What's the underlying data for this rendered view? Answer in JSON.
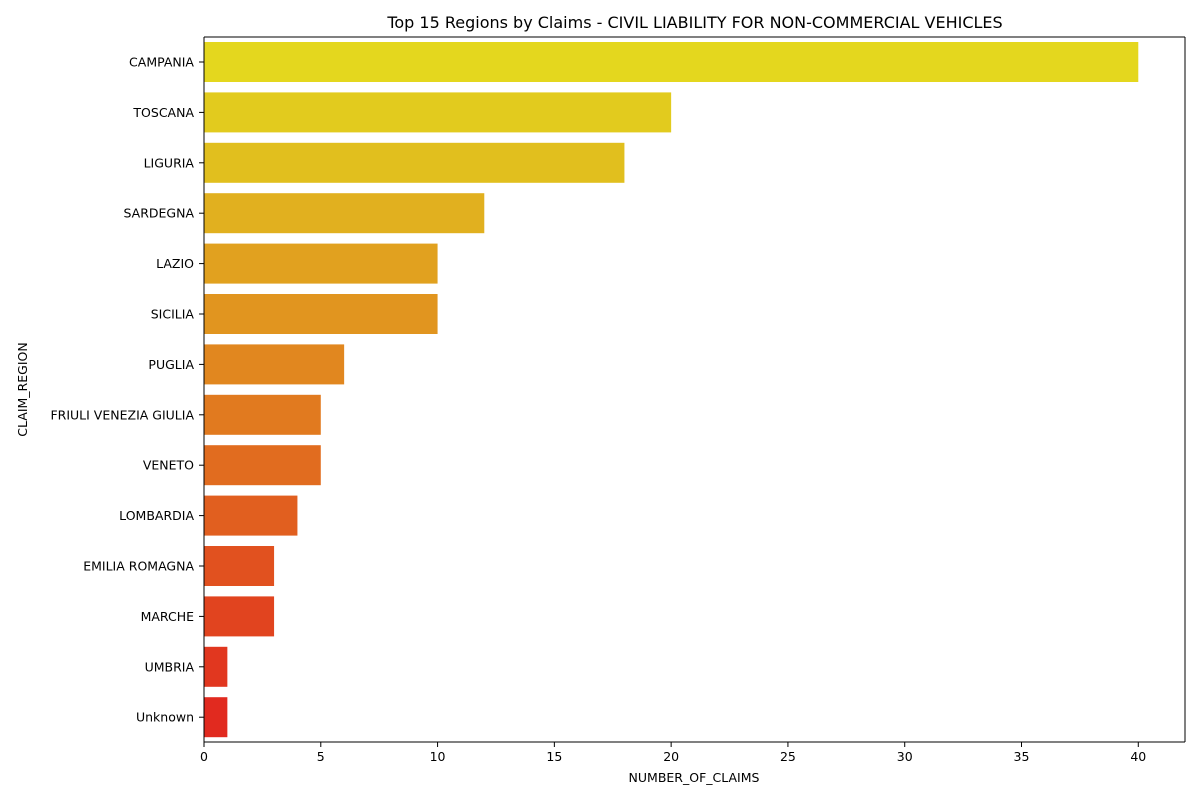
{
  "chart_data": {
    "type": "bar",
    "orientation": "horizontal",
    "title": "Top 15 Regions by Claims - CIVIL LIABILITY FOR NON-COMMERCIAL VEHICLES",
    "xlabel": "NUMBER_OF_CLAIMS",
    "ylabel": "CLAIM_REGION",
    "xlim": [
      0,
      42
    ],
    "xticks": [
      0,
      5,
      10,
      15,
      20,
      25,
      30,
      35,
      40
    ],
    "grid": false,
    "categories": [
      "CAMPANIA",
      "TOSCANA",
      "LIGURIA",
      "SARDEGNA",
      "LAZIO",
      "SICILIA",
      "PUGLIA",
      "FRIULI VENEZIA GIULIA",
      "VENETO",
      "LOMBARDIA",
      "EMILIA ROMAGNA",
      "MARCHE",
      "UMBRIA",
      "Unknown"
    ],
    "values": [
      40,
      20,
      18,
      12,
      10,
      10,
      6,
      5,
      5,
      4,
      3,
      3,
      1,
      1
    ],
    "colors": [
      "#e4d71e",
      "#e2cb1e",
      "#e1bf1e",
      "#e1b01f",
      "#e1a11f",
      "#e1951f",
      "#e1871f",
      "#e17a1f",
      "#e16c1f",
      "#e15f1f",
      "#e1511f",
      "#e1441f",
      "#e1371f",
      "#e12a1f"
    ]
  }
}
